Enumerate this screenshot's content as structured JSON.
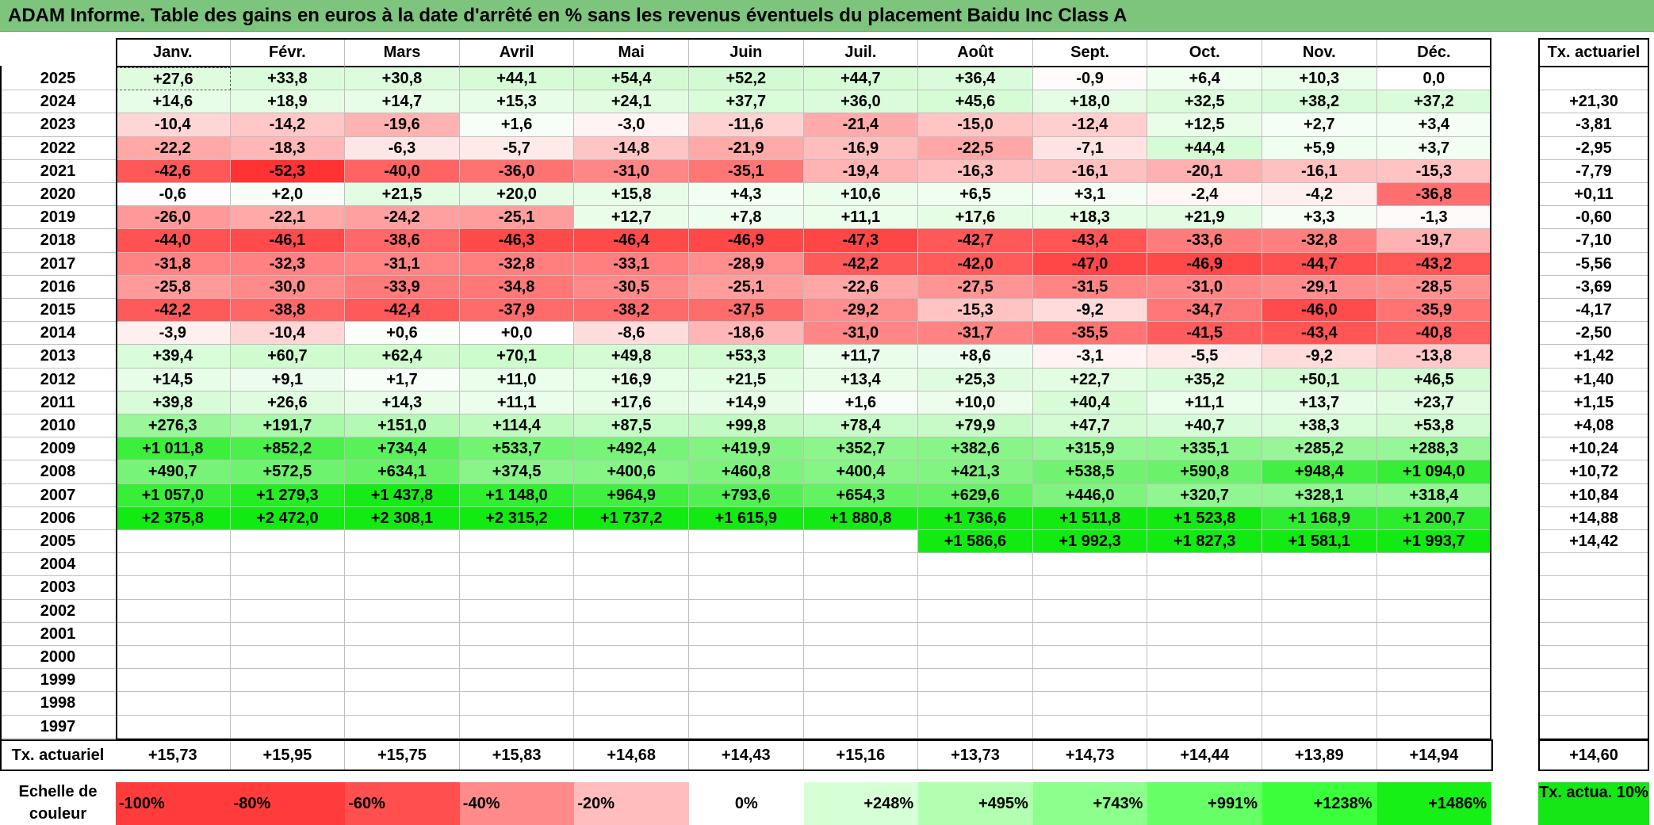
{
  "title": "ADAM Informe. Table des gains en euros à la date d'arrêté en % sans les revenus éventuels du placement Baidu Inc Class A",
  "chart_data": {
    "type": "heatmap",
    "title": "ADAM Informe. Table des gains en euros à la date d'arrêté en % sans les revenus éventuels du placement Baidu Inc Class A",
    "months": [
      "Janv.",
      "Févr.",
      "Mars",
      "Avril",
      "Mai",
      "Juin",
      "Juil.",
      "Août",
      "Sept.",
      "Oct.",
      "Nov.",
      "Déc."
    ],
    "rate_header": "Tx. actuariel",
    "rows": [
      {
        "year": "2025",
        "values": [
          "+27,6",
          "+33,8",
          "+30,8",
          "+44,1",
          "+54,4",
          "+52,2",
          "+44,7",
          "+36,4",
          "-0,9",
          "+6,4",
          "+10,3",
          "0,0"
        ],
        "rate": ""
      },
      {
        "year": "2024",
        "values": [
          "+14,6",
          "+18,9",
          "+14,7",
          "+15,3",
          "+24,1",
          "+37,7",
          "+36,0",
          "+45,6",
          "+18,0",
          "+32,5",
          "+38,2",
          "+37,2"
        ],
        "rate": "+21,30"
      },
      {
        "year": "2023",
        "values": [
          "-10,4",
          "-14,2",
          "-19,6",
          "+1,6",
          "-3,0",
          "-11,6",
          "-21,4",
          "-15,0",
          "-12,4",
          "+12,5",
          "+2,7",
          "+3,4"
        ],
        "rate": "-3,81"
      },
      {
        "year": "2022",
        "values": [
          "-22,2",
          "-18,3",
          "-6,3",
          "-5,7",
          "-14,8",
          "-21,9",
          "-16,9",
          "-22,5",
          "-7,1",
          "+44,4",
          "+5,9",
          "+3,7"
        ],
        "rate": "-2,95"
      },
      {
        "year": "2021",
        "values": [
          "-42,6",
          "-52,3",
          "-40,0",
          "-36,0",
          "-31,0",
          "-35,1",
          "-19,4",
          "-16,3",
          "-16,1",
          "-20,1",
          "-16,1",
          "-15,3"
        ],
        "rate": "-7,79"
      },
      {
        "year": "2020",
        "values": [
          "-0,6",
          "+2,0",
          "+21,5",
          "+20,0",
          "+15,8",
          "+4,3",
          "+10,6",
          "+6,5",
          "+3,1",
          "-2,4",
          "-4,2",
          "-36,8"
        ],
        "rate": "+0,11"
      },
      {
        "year": "2019",
        "values": [
          "-26,0",
          "-22,1",
          "-24,2",
          "-25,1",
          "+12,7",
          "+7,8",
          "+11,1",
          "+17,6",
          "+18,3",
          "+21,9",
          "+3,3",
          "-1,3"
        ],
        "rate": "-0,60"
      },
      {
        "year": "2018",
        "values": [
          "-44,0",
          "-46,1",
          "-38,6",
          "-46,3",
          "-46,4",
          "-46,9",
          "-47,3",
          "-42,7",
          "-43,4",
          "-33,6",
          "-32,8",
          "-19,7"
        ],
        "rate": "-7,10"
      },
      {
        "year": "2017",
        "values": [
          "-31,8",
          "-32,3",
          "-31,1",
          "-32,8",
          "-33,1",
          "-28,9",
          "-42,2",
          "-42,0",
          "-47,0",
          "-46,9",
          "-44,7",
          "-43,2"
        ],
        "rate": "-5,56"
      },
      {
        "year": "2016",
        "values": [
          "-25,8",
          "-30,0",
          "-33,9",
          "-34,8",
          "-30,5",
          "-25,1",
          "-22,6",
          "-27,5",
          "-31,5",
          "-31,0",
          "-29,1",
          "-28,5"
        ],
        "rate": "-3,69"
      },
      {
        "year": "2015",
        "values": [
          "-42,2",
          "-38,8",
          "-42,4",
          "-37,9",
          "-38,2",
          "-37,5",
          "-29,2",
          "-15,3",
          "-9,2",
          "-34,7",
          "-46,0",
          "-35,9"
        ],
        "rate": "-4,17"
      },
      {
        "year": "2014",
        "values": [
          "-3,9",
          "-10,4",
          "+0,6",
          "+0,0",
          "-8,6",
          "-18,6",
          "-31,0",
          "-31,7",
          "-35,5",
          "-41,5",
          "-43,4",
          "-40,8"
        ],
        "rate": "-2,50"
      },
      {
        "year": "2013",
        "values": [
          "+39,4",
          "+60,7",
          "+62,4",
          "+70,1",
          "+49,8",
          "+53,3",
          "+11,7",
          "+8,6",
          "-3,1",
          "-5,5",
          "-9,2",
          "-13,8"
        ],
        "rate": "+1,42"
      },
      {
        "year": "2012",
        "values": [
          "+14,5",
          "+9,1",
          "+1,7",
          "+11,0",
          "+16,9",
          "+21,5",
          "+13,4",
          "+25,3",
          "+22,7",
          "+35,2",
          "+50,1",
          "+46,5"
        ],
        "rate": "+1,40"
      },
      {
        "year": "2011",
        "values": [
          "+39,8",
          "+26,6",
          "+14,3",
          "+11,1",
          "+17,6",
          "+14,9",
          "+1,6",
          "+10,0",
          "+40,4",
          "+11,1",
          "+13,7",
          "+23,7"
        ],
        "rate": "+1,15"
      },
      {
        "year": "2010",
        "values": [
          "+276,3",
          "+191,7",
          "+151,0",
          "+114,4",
          "+87,5",
          "+99,8",
          "+78,4",
          "+79,9",
          "+47,7",
          "+40,7",
          "+38,3",
          "+53,8"
        ],
        "rate": "+4,08"
      },
      {
        "year": "2009",
        "values": [
          "+1 011,8",
          "+852,2",
          "+734,4",
          "+533,7",
          "+492,4",
          "+419,9",
          "+352,7",
          "+382,6",
          "+315,9",
          "+335,1",
          "+285,2",
          "+288,3"
        ],
        "rate": "+10,24"
      },
      {
        "year": "2008",
        "values": [
          "+490,7",
          "+572,5",
          "+634,1",
          "+374,5",
          "+400,6",
          "+460,8",
          "+400,4",
          "+421,3",
          "+538,5",
          "+590,8",
          "+948,4",
          "+1 094,0"
        ],
        "rate": "+10,72"
      },
      {
        "year": "2007",
        "values": [
          "+1 057,0",
          "+1 279,3",
          "+1 437,8",
          "+1 148,0",
          "+964,9",
          "+793,6",
          "+654,3",
          "+629,6",
          "+446,0",
          "+320,7",
          "+328,1",
          "+318,4"
        ],
        "rate": "+10,84"
      },
      {
        "year": "2006",
        "values": [
          "+2 375,8",
          "+2 472,0",
          "+2 308,1",
          "+2 315,2",
          "+1 737,2",
          "+1 615,9",
          "+1 880,8",
          "+1 736,6",
          "+1 511,8",
          "+1 523,8",
          "+1 168,9",
          "+1 200,7"
        ],
        "rate": "+14,88"
      },
      {
        "year": "2005",
        "values": [
          "",
          "",
          "",
          "",
          "",
          "",
          "",
          "+1 586,6",
          "+1 992,3",
          "+1 827,3",
          "+1 581,1",
          "+1 993,7"
        ],
        "rate": "+14,42"
      },
      {
        "year": "2004",
        "values": [
          "",
          "",
          "",
          "",
          "",
          "",
          "",
          "",
          "",
          "",
          "",
          ""
        ],
        "rate": ""
      },
      {
        "year": "2003",
        "values": [
          "",
          "",
          "",
          "",
          "",
          "",
          "",
          "",
          "",
          "",
          "",
          ""
        ],
        "rate": ""
      },
      {
        "year": "2002",
        "values": [
          "",
          "",
          "",
          "",
          "",
          "",
          "",
          "",
          "",
          "",
          "",
          ""
        ],
        "rate": ""
      },
      {
        "year": "2001",
        "values": [
          "",
          "",
          "",
          "",
          "",
          "",
          "",
          "",
          "",
          "",
          "",
          ""
        ],
        "rate": ""
      },
      {
        "year": "2000",
        "values": [
          "",
          "",
          "",
          "",
          "",
          "",
          "",
          "",
          "",
          "",
          "",
          ""
        ],
        "rate": ""
      },
      {
        "year": "1999",
        "values": [
          "",
          "",
          "",
          "",
          "",
          "",
          "",
          "",
          "",
          "",
          "",
          ""
        ],
        "rate": ""
      },
      {
        "year": "1998",
        "values": [
          "",
          "",
          "",
          "",
          "",
          "",
          "",
          "",
          "",
          "",
          "",
          ""
        ],
        "rate": ""
      },
      {
        "year": "1997",
        "values": [
          "",
          "",
          "",
          "",
          "",
          "",
          "",
          "",
          "",
          "",
          "",
          ""
        ],
        "rate": ""
      }
    ],
    "footer": {
      "label": "Tx. actuariel",
      "values": [
        "+15,73",
        "+15,95",
        "+15,75",
        "+15,83",
        "+14,68",
        "+14,43",
        "+15,16",
        "+13,73",
        "+14,73",
        "+14,44",
        "+13,89",
        "+14,94"
      ],
      "total": "+14,60"
    },
    "legend": {
      "label": "Echelle de couleur",
      "items": [
        {
          "text": "-100%",
          "color": "#ff3b3b"
        },
        {
          "text": "-80%",
          "color": "#ff3b3b"
        },
        {
          "text": "-60%",
          "color": "#ff4f4f"
        },
        {
          "text": "-40%",
          "color": "#ff8a8a"
        },
        {
          "text": "-20%",
          "color": "#ffbdbd"
        },
        {
          "text": "0%",
          "color": "#ffffff"
        },
        {
          "text": "+248%",
          "color": "#d6ffd6"
        },
        {
          "text": "+495%",
          "color": "#b2ffb2"
        },
        {
          "text": "+743%",
          "color": "#8cff8c"
        },
        {
          "text": "+991%",
          "color": "#66ff66"
        },
        {
          "text": "+1238%",
          "color": "#3cff3c"
        },
        {
          "text": "+1486%",
          "color": "#16f016"
        }
      ],
      "rate_label": "Tx. actua. 10%",
      "rate_color": "#16e616"
    }
  }
}
